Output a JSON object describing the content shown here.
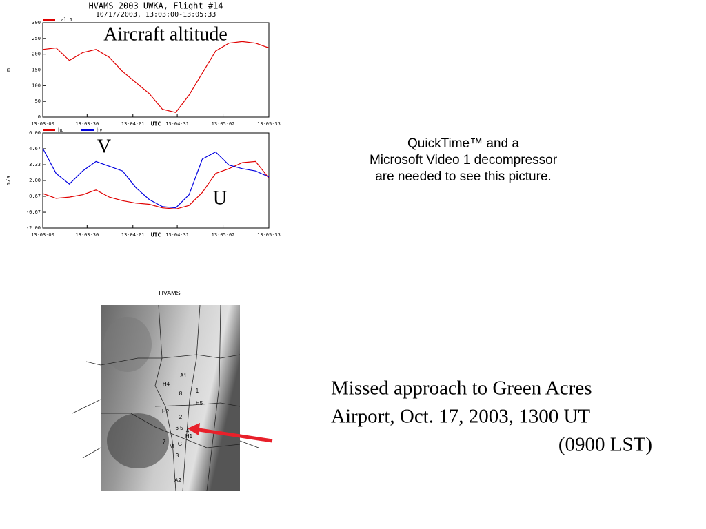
{
  "chart_data": [
    {
      "type": "line",
      "title": "HVAMS 2003 UWKA, Flight #14",
      "subtitle": "10/17/2003, 13:03:00-13:05:33",
      "x_label": "UTC",
      "y_label": "m",
      "legend": "top-left",
      "annotations": [
        "Aircraft altitude"
      ],
      "x": [
        "13:03:00",
        "13:03:09",
        "13:03:18",
        "13:03:27",
        "13:03:36",
        "13:03:45",
        "13:03:54",
        "13:04:03",
        "13:04:12",
        "13:04:21",
        "13:04:30",
        "13:04:39",
        "13:04:48",
        "13:04:57",
        "13:05:06",
        "13:05:15",
        "13:05:24",
        "13:05:33"
      ],
      "series": [
        {
          "name": "ralt1",
          "color": "#e00000",
          "values": [
            215,
            220,
            180,
            205,
            215,
            190,
            145,
            110,
            75,
            25,
            15,
            70,
            140,
            210,
            235,
            240,
            235,
            220
          ]
        }
      ],
      "xlim": [
        "13:03:00",
        "13:05:33"
      ],
      "xticks": [
        "13:03:00",
        "13:03:30",
        "13:04:01",
        "13:04:31",
        "13:05:02",
        "13:05:33"
      ],
      "ylim": [
        0,
        300
      ],
      "yticks": [
        0,
        50,
        100,
        150,
        200,
        250,
        300
      ]
    },
    {
      "type": "line",
      "x_label": "UTC",
      "y_label": "m/s",
      "legend": "top-left",
      "annotations": [
        "V",
        "U"
      ],
      "x": [
        "13:03:00",
        "13:03:09",
        "13:03:18",
        "13:03:27",
        "13:03:36",
        "13:03:45",
        "13:03:54",
        "13:04:03",
        "13:04:12",
        "13:04:21",
        "13:04:30",
        "13:04:39",
        "13:04:48",
        "13:04:57",
        "13:05:06",
        "13:05:15",
        "13:05:24",
        "13:05:33"
      ],
      "series": [
        {
          "name": "hu",
          "color": "#e00000",
          "values": [
            0.9,
            0.5,
            0.6,
            0.8,
            1.2,
            0.6,
            0.3,
            0.1,
            0.0,
            -0.3,
            -0.4,
            -0.1,
            1.0,
            2.6,
            3.0,
            3.5,
            3.6,
            2.2
          ]
        },
        {
          "name": "hv",
          "color": "#0000e0",
          "values": [
            4.7,
            2.6,
            1.7,
            2.8,
            3.6,
            3.2,
            2.8,
            1.4,
            0.4,
            -0.2,
            -0.3,
            0.8,
            3.8,
            4.4,
            3.3,
            3.0,
            2.8,
            2.3
          ]
        }
      ],
      "xlim": [
        "13:03:00",
        "13:05:33"
      ],
      "xticks": [
        "13:03:00",
        "13:03:30",
        "13:04:01",
        "13:04:31",
        "13:05:02",
        "13:05:33"
      ],
      "ylim": [
        -2,
        6
      ],
      "yticks": [
        {
          "value": -2,
          "label": "-2.00"
        },
        {
          "value": -0.67,
          "label": "-0.67"
        },
        {
          "value": 0.67,
          "label": "0.67"
        },
        {
          "value": 2,
          "label": "2.00"
        },
        {
          "value": 3.33,
          "label": "3.33"
        },
        {
          "value": 4.67,
          "label": "4.67"
        },
        {
          "value": 6,
          "label": "6.00"
        }
      ]
    }
  ],
  "quicktime": [
    "QuickTime™ and a",
    "Microsoft Video 1 decompressor",
    "are needed to see this picture."
  ],
  "map": {
    "title": "HVAMS",
    "labels": [
      "A1",
      "H4",
      "1",
      "8",
      "H5",
      "H2",
      "2",
      "6 5",
      "4",
      "H1",
      "7",
      "M",
      "G",
      "3",
      "A2"
    ]
  },
  "caption": [
    "Missed approach to Green Acres",
    "Airport, Oct. 17, 2003, 1300 UT",
    "(0900 LST)"
  ]
}
